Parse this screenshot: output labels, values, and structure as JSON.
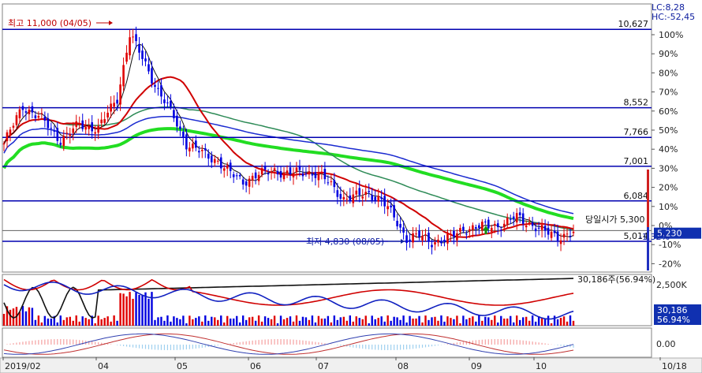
{
  "chart_data": {
    "type": "candlestick",
    "x_ticks": [
      "2019/02",
      "04",
      "05",
      "06",
      "07",
      "08",
      "09",
      "10",
      "10/18"
    ],
    "indicator_labels": {
      "lc": "LC:8,28",
      "hc": "HC:-52,45"
    },
    "high_annotation": "최고 11,000 (04/05)",
    "low_annotation": "최저 4,830 (08/05)",
    "price_levels": [
      {
        "label": "10,627",
        "value": 10627
      },
      {
        "label": "8,552",
        "value": 8552
      },
      {
        "label": "7,766",
        "value": 7766
      },
      {
        "label": "7,001",
        "value": 7001
      },
      {
        "label": "6,084",
        "value": 6084
      },
      {
        "label": "5,014",
        "value": 5014
      }
    ],
    "percent_ticks": [
      "100%",
      "90%",
      "80%",
      "70%",
      "60%",
      "50%",
      "40%",
      "30%",
      "20%",
      "10%",
      "0%",
      "-10%",
      "-20%"
    ],
    "open_label": "당일시가 5,300",
    "open_value": 5300,
    "current_tag": "5,230",
    "current_pct": "-1.32%",
    "current_value": 5230,
    "volume_axis": "2,500K",
    "volume_label": "30,186주(56.94%)",
    "volume_tag": "30,186",
    "volume_pct_tag": "56.94%",
    "osc_axis": "0.00",
    "y_range": [
      4200,
      11300
    ],
    "colors": {
      "up": "#e00000",
      "down": "#0000e0",
      "level": "#0000b0",
      "ma5": "#111111",
      "ma20": "#d00000",
      "ma60": "#2e8b57",
      "ma120": "#1a2ad0",
      "ma240": "#22dd22"
    }
  }
}
